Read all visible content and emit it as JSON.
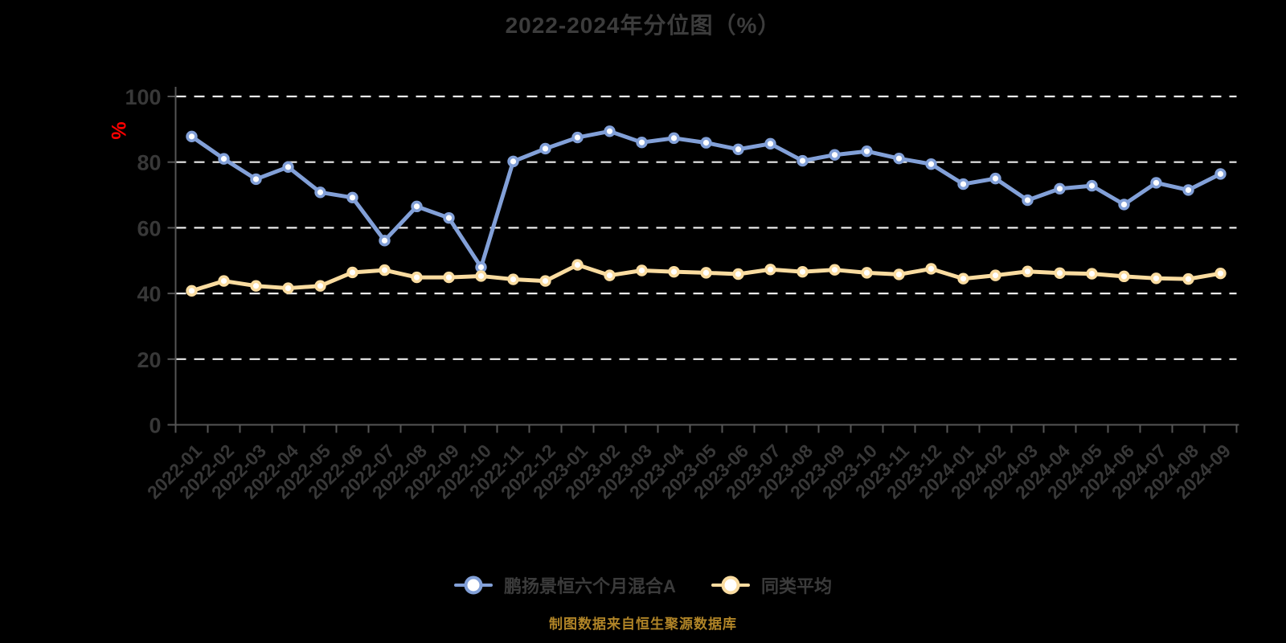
{
  "title": "2022-2024年分位图（%）",
  "footer": "制图数据来自恒生聚源数据库",
  "colors": {
    "background": "#000000",
    "axis": "#555555",
    "grid": "#eaeaea",
    "tick_text": "#383838",
    "title_text": "#3c3c3c",
    "ylabel_text": "#fe0000",
    "footer_text": "#b08427",
    "fund_series": "#82a0d8",
    "average_series": "#fadca0",
    "marker_fill": "#ffffff"
  },
  "chart_data": {
    "type": "line",
    "title": "2022-2024年分位图（%）",
    "xlabel": "",
    "ylabel": "%",
    "ylim": [
      0,
      100
    ],
    "yticks": [
      0,
      20,
      40,
      60,
      80,
      100
    ],
    "grid": "horizontal-dashed",
    "legend_position": "bottom",
    "categories": [
      "2022-01",
      "2022-02",
      "2022-03",
      "2022-04",
      "2022-05",
      "2022-06",
      "2022-07",
      "2022-08",
      "2022-09",
      "2022-10",
      "2022-11",
      "2022-12",
      "2023-01",
      "2023-02",
      "2023-03",
      "2023-04",
      "2023-05",
      "2023-06",
      "2023-07",
      "2023-08",
      "2023-09",
      "2023-10",
      "2023-11",
      "2023-12",
      "2024-01",
      "2024-02",
      "2024-03",
      "2024-04",
      "2024-05",
      "2024-06",
      "2024-07",
      "2024-08",
      "2024-09"
    ],
    "series": [
      {
        "name": "鹏扬景恒六个月混合A",
        "color": "#82a0d8",
        "values": [
          87.8,
          81.0,
          74.8,
          78.5,
          70.8,
          69.2,
          56.1,
          66.5,
          63.0,
          48.0,
          80.2,
          84.1,
          87.5,
          89.4,
          86.0,
          87.3,
          85.9,
          83.9,
          85.6,
          80.4,
          82.2,
          83.3,
          81.1,
          79.4,
          73.3,
          75.0,
          68.4,
          71.9,
          72.8,
          67.1,
          73.7,
          71.5,
          76.4
        ]
      },
      {
        "name": "同类平均",
        "color": "#fadca0",
        "values": [
          40.8,
          43.8,
          42.3,
          41.6,
          42.3,
          46.4,
          47.1,
          44.9,
          44.9,
          45.3,
          44.3,
          43.8,
          48.7,
          45.5,
          47.0,
          46.6,
          46.3,
          45.9,
          47.3,
          46.6,
          47.2,
          46.3,
          45.8,
          47.5,
          44.5,
          45.5,
          46.7,
          46.2,
          46.0,
          45.2,
          44.6,
          44.4,
          46.1
        ]
      }
    ]
  }
}
